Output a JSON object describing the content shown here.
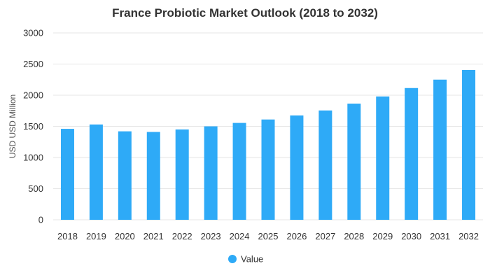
{
  "chart_data": {
    "type": "bar",
    "title": "France Probiotic Market Outlook (2018 to 2032)",
    "xlabel": "",
    "ylabel": "USD USD Million",
    "ylim": [
      0,
      3000
    ],
    "yticks": [
      0,
      500,
      1000,
      1500,
      2000,
      2500,
      3000
    ],
    "grid": true,
    "legend_position": "bottom-center",
    "categories": [
      "2018",
      "2019",
      "2020",
      "2021",
      "2022",
      "2023",
      "2024",
      "2025",
      "2026",
      "2027",
      "2028",
      "2029",
      "2030",
      "2031",
      "2032"
    ],
    "series": [
      {
        "name": "Value",
        "color": "#2eaaf7",
        "values": [
          1460,
          1530,
          1420,
          1410,
          1450,
          1500,
          1555,
          1610,
          1675,
          1755,
          1865,
          1980,
          2115,
          2250,
          2405
        ]
      }
    ]
  }
}
